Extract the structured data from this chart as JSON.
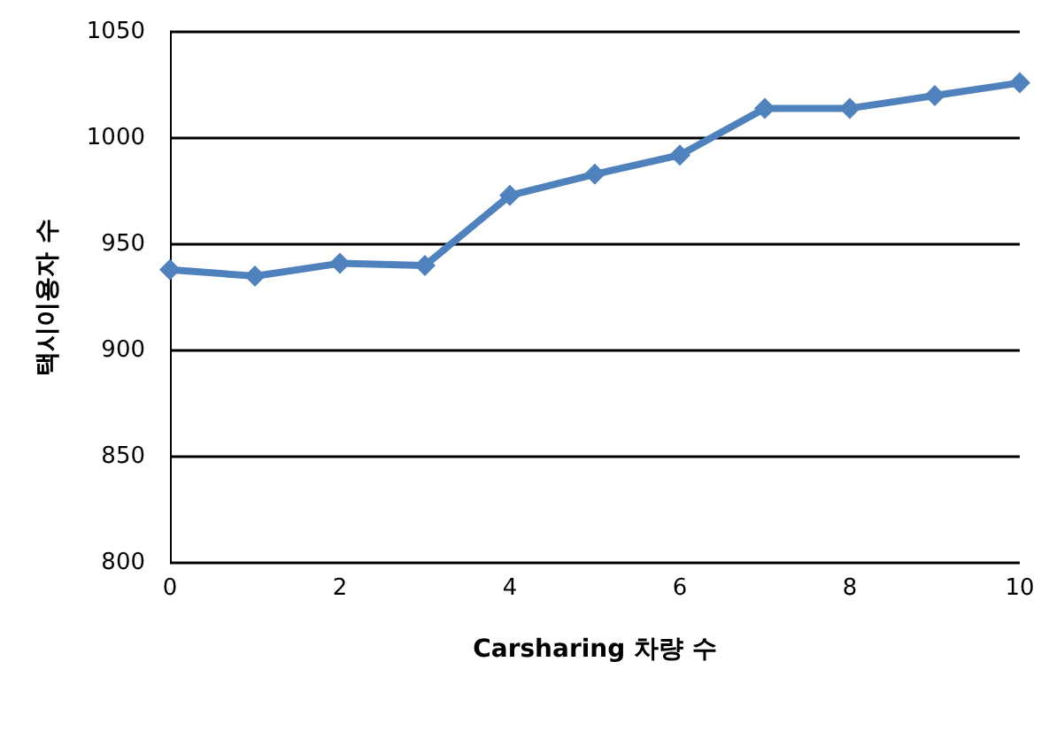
{
  "chart_data": {
    "type": "line",
    "xlabel": "Carsharing 차량 수",
    "ylabel": "택시이용자 수",
    "x": [
      0,
      1,
      2,
      3,
      4,
      5,
      6,
      7,
      8,
      9,
      10
    ],
    "series": [
      {
        "color": "#4f81bd",
        "values": [
          938,
          935,
          941,
          940,
          973,
          983,
          992,
          1014,
          1014,
          1020,
          1026
        ]
      }
    ],
    "xlim": [
      0,
      10
    ],
    "xticks": [
      0,
      2,
      4,
      6,
      8,
      10
    ],
    "ylim": [
      800,
      1050
    ],
    "yticks": [
      800,
      850,
      900,
      950,
      1000,
      1050
    ],
    "grid": "y",
    "marker": "diamond",
    "line_style": "solid"
  }
}
